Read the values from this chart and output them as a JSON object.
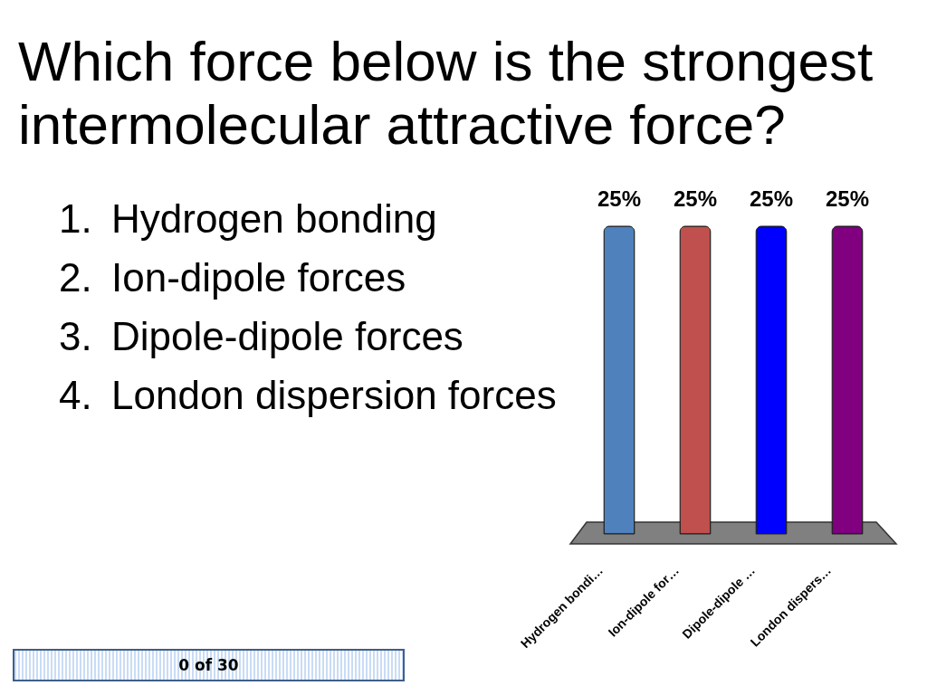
{
  "chart_data": {
    "type": "bar",
    "title": "Which force below is the strongest intermolecular attractive force?",
    "categories": [
      "Hydrogen bondi…",
      "Ion-dipole for…",
      "Dipole-dipole …",
      "London dispers…"
    ],
    "values": [
      25,
      25,
      25,
      25
    ],
    "colors": [
      "#4f81bd",
      "#c0504d",
      "#0000ff",
      "#800080"
    ],
    "value_labels": [
      "25%",
      "25%",
      "25%",
      "25%"
    ],
    "annotations": [
      "1. Hydrogen bonding",
      "2. Ion-dipole forces",
      "3. Dipole-dipole forces",
      "4. London dispersion forces",
      "0 of 30"
    ]
  }
}
